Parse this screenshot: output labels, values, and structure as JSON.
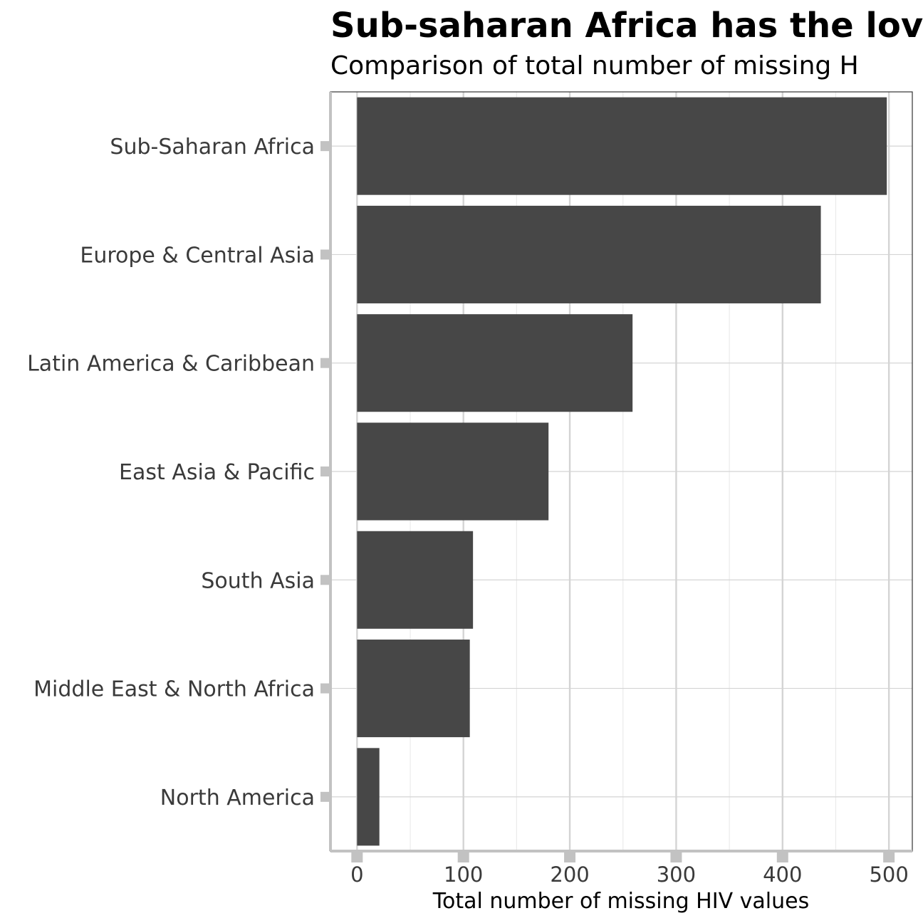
{
  "chart_data": {
    "type": "bar",
    "orientation": "horizontal",
    "title": "Sub-saharan Africa has the lov",
    "subtitle": "Comparison of total number of missing H",
    "xlabel": "Total number of missing HIV values",
    "ylabel": "",
    "categories": [
      "Sub-Saharan Africa",
      "Europe & Central Asia",
      "Latin America & Caribbean",
      "East Asia & Pacific",
      "South Asia",
      "Middle East & North Africa",
      "North America"
    ],
    "values": [
      498,
      436,
      259,
      180,
      109,
      106,
      21
    ],
    "xlim": [
      -25,
      522
    ],
    "xticks": [
      0,
      100,
      200,
      300,
      400,
      500
    ],
    "grid": true,
    "legend": "none",
    "colors": {
      "bar": "#474747",
      "grid_major": "#d4d4d4",
      "grid_minor": "#ebebeb",
      "axis": "#c2c2c2",
      "panel_border": "#333333"
    }
  }
}
